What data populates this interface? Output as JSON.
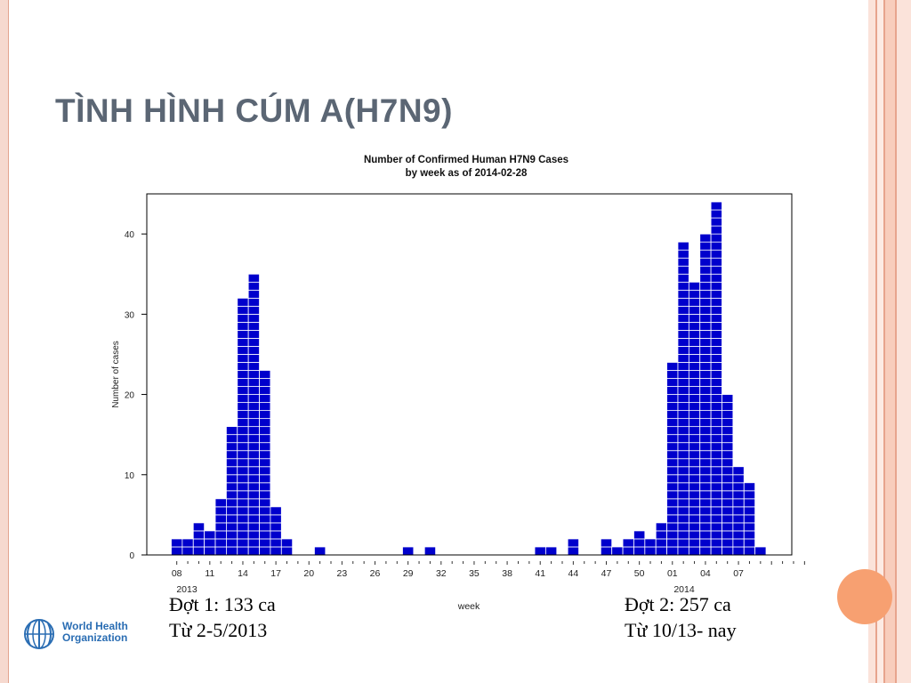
{
  "slide": {
    "title": "TÌNH HÌNH CÚM A(H7N9)"
  },
  "annotations": {
    "wave1_line1": "Đợt 1: 133 ca",
    "wave1_line2": "Từ 2-5/2013",
    "wave2_line1": "Đợt 2: 257 ca",
    "wave2_line2": "Từ 10/13- nay"
  },
  "logo": {
    "line1": "World Health",
    "line2": "Organization"
  },
  "colors": {
    "bar": "#0000cc",
    "title": "#5b6674",
    "accent": "#f7a071",
    "logo": "#2a6db3"
  },
  "chart_data": {
    "type": "bar",
    "title": "Number of Confirmed Human H7N9 Cases",
    "subtitle": "by week as of 2014-02-28",
    "xlabel": "week",
    "ylabel": "Number of cases",
    "ylim": [
      0,
      45
    ],
    "yticks": [
      0,
      10,
      20,
      30,
      40
    ],
    "grid": false,
    "x_tick_labels": [
      "08",
      "11",
      "14",
      "17",
      "20",
      "23",
      "26",
      "29",
      "32",
      "35",
      "38",
      "41",
      "44",
      "47",
      "50",
      "01",
      "04",
      "07"
    ],
    "year_labels": [
      "2013",
      "2014"
    ],
    "categories": [
      "2013-08",
      "2013-09",
      "2013-10",
      "2013-11",
      "2013-12",
      "2013-13",
      "2013-14",
      "2013-15",
      "2013-16",
      "2013-17",
      "2013-18",
      "2013-19",
      "2013-20",
      "2013-21",
      "2013-22",
      "2013-23",
      "2013-24",
      "2013-25",
      "2013-26",
      "2013-27",
      "2013-28",
      "2013-29",
      "2013-30",
      "2013-31",
      "2013-32",
      "2013-33",
      "2013-34",
      "2013-35",
      "2013-36",
      "2013-37",
      "2013-38",
      "2013-39",
      "2013-40",
      "2013-41",
      "2013-42",
      "2013-43",
      "2013-44",
      "2013-45",
      "2013-46",
      "2013-47",
      "2013-48",
      "2013-49",
      "2013-50",
      "2013-51",
      "2013-52",
      "2014-01",
      "2014-02",
      "2014-03",
      "2014-04",
      "2014-05",
      "2014-06",
      "2014-07",
      "2014-08",
      "2014-09"
    ],
    "values": [
      2,
      2,
      4,
      3,
      7,
      16,
      32,
      35,
      23,
      6,
      2,
      0,
      0,
      1,
      0,
      0,
      0,
      0,
      0,
      0,
      0,
      1,
      0,
      1,
      0,
      0,
      0,
      0,
      0,
      0,
      0,
      0,
      0,
      1,
      1,
      0,
      2,
      0,
      0,
      2,
      1,
      2,
      3,
      2,
      4,
      24,
      39,
      34,
      40,
      44,
      20,
      11,
      9,
      1
    ]
  }
}
